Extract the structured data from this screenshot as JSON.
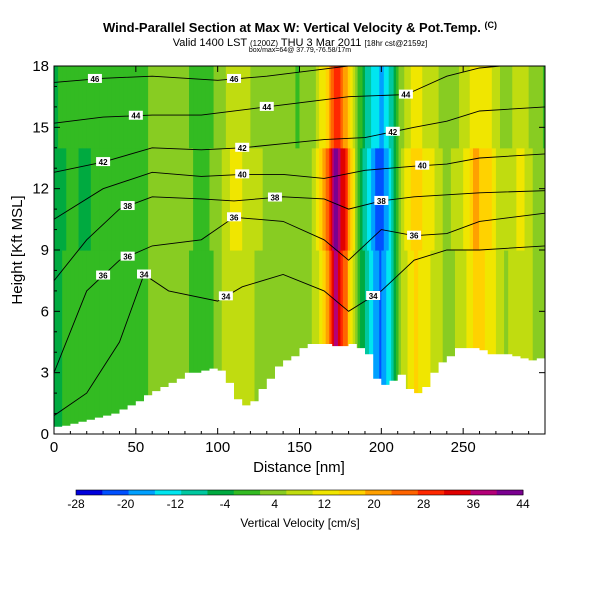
{
  "header": {
    "title": "Wind-Parallel Section at Max W: Vertical Velocity & Pot.Temp.",
    "title_mark": "(C)",
    "subtitle_main": "Valid 1400 LST",
    "subtitle_small1": "(1200Z)",
    "subtitle_date": "THU 3 Mar 2011",
    "subtitle_small2": "[18hr cst@2159z]",
    "subtitle2": "box/max=64@ 37.79,-76.58/17m"
  },
  "chart_data": {
    "type": "heatmap",
    "xlabel": "Distance [nm]",
    "ylabel": "Height [Kft MSL]",
    "xlim": [
      0,
      300
    ],
    "ylim": [
      0,
      18
    ],
    "xticks": [
      "0",
      "50",
      "100",
      "150",
      "200",
      "250"
    ],
    "yticks": [
      "0",
      "3",
      "6",
      "9",
      "12",
      "15",
      "18"
    ],
    "colorbar": {
      "label": "Vertical Velocity [cm/s]",
      "ticks": [
        "-28",
        "-20",
        "-12",
        "-4",
        "4",
        "12",
        "20",
        "28",
        "36",
        "44"
      ],
      "range": [
        -28,
        44
      ],
      "colors": [
        "#0000dc",
        "#0050ff",
        "#00a0ff",
        "#00e6f0",
        "#00c8a0",
        "#00aa40",
        "#33bb22",
        "#88cc22",
        "#c0dc10",
        "#f0e600",
        "#ffd200",
        "#ffa000",
        "#ff6400",
        "#ff2800",
        "#e00000",
        "#b40078",
        "#7a0090"
      ]
    },
    "terrain_heights": [
      [
        0,
        0.35
      ],
      [
        5,
        0.4
      ],
      [
        10,
        0.5
      ],
      [
        15,
        0.6
      ],
      [
        20,
        0.7
      ],
      [
        25,
        0.8
      ],
      [
        30,
        0.9
      ],
      [
        35,
        1.0
      ],
      [
        40,
        1.2
      ],
      [
        45,
        1.4
      ],
      [
        50,
        1.6
      ],
      [
        55,
        1.9
      ],
      [
        60,
        2.1
      ],
      [
        65,
        2.3
      ],
      [
        70,
        2.5
      ],
      [
        75,
        2.7
      ],
      [
        80,
        3.0
      ],
      [
        85,
        3.0
      ],
      [
        90,
        3.1
      ],
      [
        95,
        3.2
      ],
      [
        100,
        3.1
      ],
      [
        105,
        2.5
      ],
      [
        110,
        1.7
      ],
      [
        115,
        1.4
      ],
      [
        120,
        1.6
      ],
      [
        125,
        2.2
      ],
      [
        130,
        2.7
      ],
      [
        135,
        3.3
      ],
      [
        140,
        3.6
      ],
      [
        145,
        3.8
      ],
      [
        150,
        4.2
      ],
      [
        155,
        4.4
      ],
      [
        160,
        4.4
      ],
      [
        165,
        4.4
      ],
      [
        170,
        4.3
      ],
      [
        175,
        4.3
      ],
      [
        180,
        4.4
      ],
      [
        185,
        4.2
      ],
      [
        190,
        3.9
      ],
      [
        195,
        2.7
      ],
      [
        200,
        2.4
      ],
      [
        205,
        2.6
      ],
      [
        210,
        2.9
      ],
      [
        215,
        2.2
      ],
      [
        220,
        2.0
      ],
      [
        225,
        2.3
      ],
      [
        230,
        3.0
      ],
      [
        235,
        3.5
      ],
      [
        240,
        3.8
      ],
      [
        245,
        4.2
      ],
      [
        250,
        4.2
      ],
      [
        255,
        4.2
      ],
      [
        260,
        4.1
      ],
      [
        265,
        3.9
      ],
      [
        270,
        3.9
      ],
      [
        275,
        3.9
      ],
      [
        280,
        3.8
      ],
      [
        285,
        3.7
      ],
      [
        290,
        3.6
      ],
      [
        295,
        3.7
      ],
      [
        300,
        3.7
      ]
    ],
    "w_columns": [
      {
        "x": 0,
        "w": -4
      },
      {
        "x": 10,
        "w": -2
      },
      {
        "x": 20,
        "w": -3
      },
      {
        "x": 30,
        "w": -1
      },
      {
        "x": 40,
        "w": 0
      },
      {
        "x": 50,
        "w": -2
      },
      {
        "x": 60,
        "w": 3
      },
      {
        "x": 70,
        "w": 5
      },
      {
        "x": 80,
        "w": 4
      },
      {
        "x": 90,
        "w": -2
      },
      {
        "x": 100,
        "w": 4
      },
      {
        "x": 110,
        "w": 12
      },
      {
        "x": 120,
        "w": 8
      },
      {
        "x": 130,
        "w": 5
      },
      {
        "x": 140,
        "w": 3
      },
      {
        "x": 150,
        "w": 2
      },
      {
        "x": 160,
        "w": 8
      },
      {
        "x": 168,
        "w": 28
      },
      {
        "x": 172,
        "w": 44
      },
      {
        "x": 178,
        "w": 30
      },
      {
        "x": 184,
        "w": 8
      },
      {
        "x": 190,
        "w": -10
      },
      {
        "x": 195,
        "w": -18
      },
      {
        "x": 200,
        "w": -24
      },
      {
        "x": 206,
        "w": -12
      },
      {
        "x": 212,
        "w": 6
      },
      {
        "x": 220,
        "w": 18
      },
      {
        "x": 230,
        "w": 12
      },
      {
        "x": 240,
        "w": 4
      },
      {
        "x": 250,
        "w": 10
      },
      {
        "x": 258,
        "w": 20
      },
      {
        "x": 265,
        "w": 16
      },
      {
        "x": 275,
        "w": 6
      },
      {
        "x": 285,
        "w": 12
      },
      {
        "x": 295,
        "w": 4
      },
      {
        "x": 300,
        "w": 2
      }
    ],
    "isentropes": [
      {
        "label": "34",
        "label_x": [
          55,
          105,
          195
        ],
        "points": [
          [
            0,
            0.9
          ],
          [
            20,
            2.0
          ],
          [
            40,
            4.5
          ],
          [
            55,
            7.8
          ],
          [
            70,
            7.0
          ],
          [
            100,
            6.5
          ],
          [
            115,
            7.2
          ],
          [
            140,
            7.8
          ],
          [
            165,
            7.0
          ],
          [
            180,
            6.0
          ],
          [
            200,
            7.0
          ],
          [
            220,
            8.5
          ],
          [
            240,
            9.0
          ],
          [
            260,
            9.0
          ],
          [
            300,
            9.2
          ]
        ]
      },
      {
        "label": "36",
        "label_x": [
          30,
          45,
          110,
          220
        ],
        "points": [
          [
            0,
            3.0
          ],
          [
            20,
            7.0
          ],
          [
            40,
            8.5
          ],
          [
            60,
            9.2
          ],
          [
            90,
            9.5
          ],
          [
            110,
            10.6
          ],
          [
            140,
            10.4
          ],
          [
            165,
            9.5
          ],
          [
            180,
            8.5
          ],
          [
            200,
            10.0
          ],
          [
            220,
            9.7
          ],
          [
            240,
            9.8
          ],
          [
            260,
            10.4
          ],
          [
            300,
            10.8
          ]
        ]
      },
      {
        "label": "38",
        "label_x": [
          45,
          135,
          200
        ],
        "points": [
          [
            0,
            7.5
          ],
          [
            20,
            9.5
          ],
          [
            40,
            11.0
          ],
          [
            60,
            11.6
          ],
          [
            90,
            11.5
          ],
          [
            110,
            11.4
          ],
          [
            140,
            11.6
          ],
          [
            165,
            11.5
          ],
          [
            180,
            11.0
          ],
          [
            200,
            11.4
          ],
          [
            220,
            11.6
          ],
          [
            260,
            11.8
          ],
          [
            300,
            11.9
          ]
        ]
      },
      {
        "label": "40",
        "label_x": [
          115,
          225
        ],
        "points": [
          [
            0,
            10.5
          ],
          [
            30,
            12.0
          ],
          [
            60,
            12.8
          ],
          [
            90,
            12.6
          ],
          [
            115,
            12.7
          ],
          [
            140,
            12.7
          ],
          [
            165,
            12.5
          ],
          [
            190,
            12.9
          ],
          [
            220,
            13.1
          ],
          [
            240,
            13.2
          ],
          [
            260,
            13.5
          ],
          [
            300,
            13.7
          ]
        ]
      },
      {
        "label": "42",
        "label_x": [
          30,
          115,
          207
        ],
        "points": [
          [
            0,
            12.8
          ],
          [
            30,
            13.3
          ],
          [
            60,
            14.0
          ],
          [
            90,
            13.9
          ],
          [
            115,
            14.0
          ],
          [
            140,
            14.2
          ],
          [
            165,
            14.4
          ],
          [
            190,
            14.5
          ],
          [
            220,
            15.0
          ],
          [
            240,
            15.3
          ],
          [
            260,
            15.8
          ],
          [
            300,
            16.0
          ]
        ]
      },
      {
        "label": "44",
        "label_x": [
          50,
          130,
          215
        ],
        "points": [
          [
            0,
            15.2
          ],
          [
            30,
            15.5
          ],
          [
            60,
            15.6
          ],
          [
            90,
            15.6
          ],
          [
            120,
            15.9
          ],
          [
            150,
            16.2
          ],
          [
            180,
            16.5
          ],
          [
            215,
            16.6
          ],
          [
            240,
            17.5
          ],
          [
            260,
            17.9
          ],
          [
            300,
            18.2
          ]
        ]
      },
      {
        "label": "46",
        "label_x": [
          25,
          110
        ],
        "points": [
          [
            0,
            17.2
          ],
          [
            30,
            17.4
          ],
          [
            60,
            17.5
          ],
          [
            100,
            17.3
          ],
          [
            130,
            17.5
          ],
          [
            160,
            17.8
          ],
          [
            200,
            18.2
          ],
          [
            300,
            18.5
          ]
        ]
      }
    ]
  },
  "colorbar_label": "Vertical Velocity [cm/s]"
}
